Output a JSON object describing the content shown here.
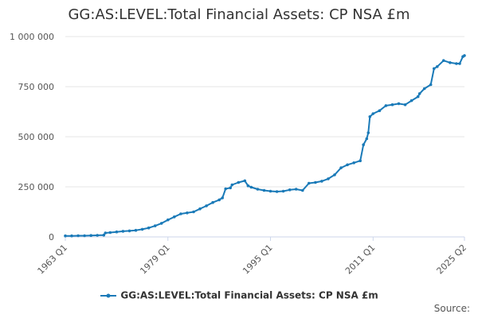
{
  "chart_data": {
    "type": "line",
    "title": "GG:AS:LEVEL:Total Financial Assets: CP NSA £m",
    "xlabel": "",
    "ylabel": "",
    "x_range": [
      1963.0,
      2025.25
    ],
    "ylim": [
      0,
      1000000
    ],
    "y_ticks": [
      0,
      250000,
      500000,
      750000,
      1000000
    ],
    "y_tick_labels": [
      "0",
      "250 000",
      "500 000",
      "750 000",
      "1 000 000"
    ],
    "x_ticks": [
      1963.0,
      1979.0,
      1995.0,
      2011.0,
      2025.25
    ],
    "x_tick_labels": [
      "1963 Q1",
      "1979 Q1",
      "1995 Q1",
      "2011 Q1",
      "2025 Q2"
    ],
    "grid": "horizontal",
    "legend_position": "bottom",
    "series": [
      {
        "name": "GG:AS:LEVEL:Total Financial Assets: CP NSA £m",
        "color": "#1a7ab8",
        "x": [
          1963.0,
          1964.0,
          1965.0,
          1966.0,
          1967.0,
          1968.0,
          1969.0,
          1969.25,
          1970.0,
          1971.0,
          1972.0,
          1973.0,
          1974.0,
          1975.0,
          1976.0,
          1977.0,
          1978.0,
          1979.0,
          1980.0,
          1981.0,
          1982.0,
          1983.0,
          1984.0,
          1985.0,
          1986.0,
          1987.0,
          1987.5,
          1988.0,
          1988.75,
          1989.0,
          1990.0,
          1991.0,
          1991.5,
          1992.0,
          1993.0,
          1994.0,
          1995.0,
          1996.0,
          1997.0,
          1998.0,
          1999.0,
          2000.0,
          2001.0,
          2002.0,
          2003.0,
          2004.0,
          2005.0,
          2006.0,
          2007.0,
          2008.0,
          2009.0,
          2009.5,
          2010.0,
          2010.25,
          2010.5,
          2011.0,
          2012.0,
          2013.0,
          2014.0,
          2015.0,
          2016.0,
          2017.0,
          2018.0,
          2018.25,
          2019.0,
          2020.0,
          2020.5,
          2021.0,
          2022.0,
          2023.0,
          2024.0,
          2024.5,
          2025.0,
          2025.25
        ],
        "y": [
          5000,
          5000,
          6000,
          6000,
          7000,
          8000,
          9000,
          20000,
          22000,
          25000,
          28000,
          30000,
          33000,
          38000,
          45000,
          55000,
          68000,
          85000,
          100000,
          115000,
          120000,
          125000,
          140000,
          155000,
          172000,
          185000,
          195000,
          240000,
          245000,
          260000,
          272000,
          280000,
          255000,
          248000,
          238000,
          232000,
          228000,
          226000,
          228000,
          235000,
          238000,
          232000,
          268000,
          272000,
          278000,
          290000,
          310000,
          345000,
          360000,
          370000,
          380000,
          460000,
          490000,
          520000,
          600000,
          615000,
          630000,
          655000,
          660000,
          665000,
          660000,
          680000,
          700000,
          715000,
          740000,
          760000,
          840000,
          850000,
          880000,
          870000,
          865000,
          865000,
          900000,
          905000
        ]
      }
    ]
  },
  "legend": {
    "label": "GG:AS:LEVEL:Total Financial Assets: CP NSA £m"
  },
  "source_label": "Source:"
}
